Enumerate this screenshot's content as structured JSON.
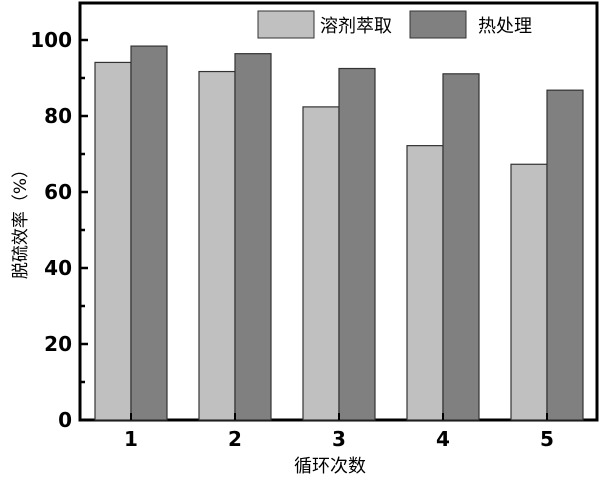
{
  "chart_data": {
    "type": "bar",
    "categories": [
      "1",
      "2",
      "3",
      "4",
      "5"
    ],
    "series": [
      {
        "name": "溶剂萃取",
        "values": [
          94.1,
          91.7,
          82.4,
          72.2,
          67.3
        ],
        "color": "#c0c0c0"
      },
      {
        "name": "热处理",
        "values": [
          98.4,
          96.4,
          92.5,
          91.1,
          86.8
        ],
        "color": "#808080"
      }
    ],
    "xlabel": "循环次数",
    "ylabel": "脱硫效率（%）",
    "ylim": [
      0,
      100
    ],
    "yticks": [
      "0",
      "20",
      "40",
      "60",
      "80",
      "100"
    ],
    "grid": false,
    "legend": "top-right"
  }
}
